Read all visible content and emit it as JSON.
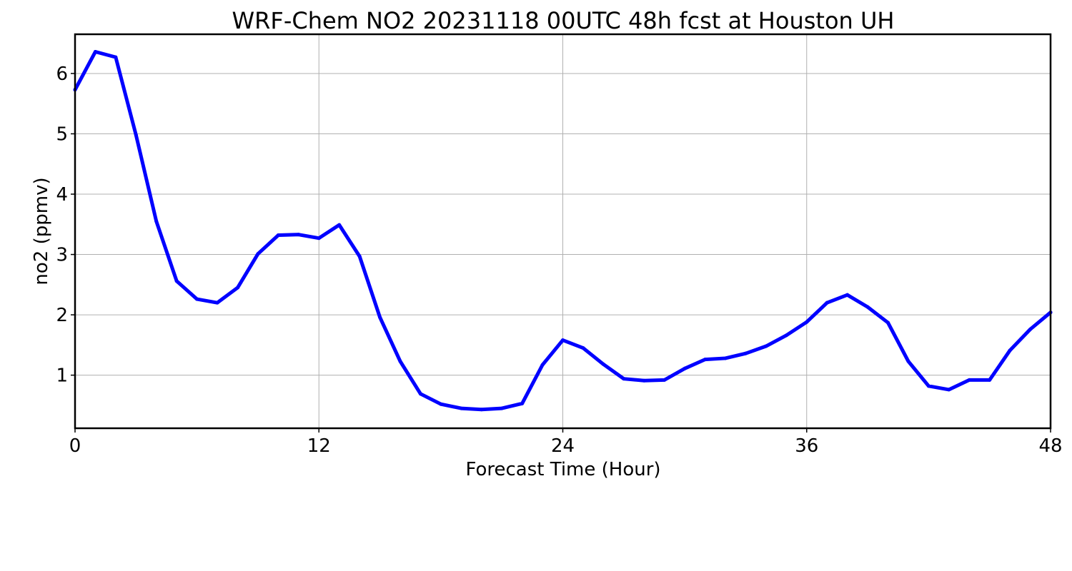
{
  "chart_data": {
    "type": "line",
    "title": "WRF-Chem NO2  20231118 00UTC 48h fcst at Houston UH",
    "xlabel": "Forecast Time (Hour)",
    "ylabel": "no2  (ppmv)",
    "xlim": [
      0,
      48
    ],
    "ylim": [
      0.12,
      6.65
    ],
    "xticks": [
      0,
      12,
      24,
      36,
      48
    ],
    "yticks": [
      1,
      2,
      3,
      4,
      5,
      6
    ],
    "grid": true,
    "x": [
      0,
      1,
      2,
      3,
      4,
      5,
      6,
      7,
      8,
      9,
      10,
      11,
      12,
      13,
      14,
      15,
      16,
      17,
      18,
      19,
      20,
      21,
      22,
      23,
      24,
      25,
      26,
      27,
      28,
      29,
      30,
      31,
      32,
      33,
      34,
      35,
      36,
      37,
      38,
      39,
      40,
      41,
      42,
      43,
      44,
      45,
      46,
      47,
      48
    ],
    "series": [
      {
        "color": "#0000ff",
        "values": [
          5.73,
          6.36,
          6.27,
          4.98,
          3.55,
          2.56,
          2.26,
          2.2,
          2.45,
          3.01,
          3.32,
          3.33,
          3.27,
          3.49,
          2.97,
          1.96,
          1.23,
          0.69,
          0.52,
          0.45,
          0.43,
          0.45,
          0.53,
          1.17,
          1.58,
          1.45,
          1.18,
          0.94,
          0.91,
          0.92,
          1.11,
          1.26,
          1.28,
          1.36,
          1.48,
          1.66,
          1.88,
          2.2,
          2.33,
          2.13,
          1.87,
          1.23,
          0.82,
          0.76,
          0.92,
          0.92,
          1.41,
          1.76,
          2.04
        ]
      }
    ]
  }
}
